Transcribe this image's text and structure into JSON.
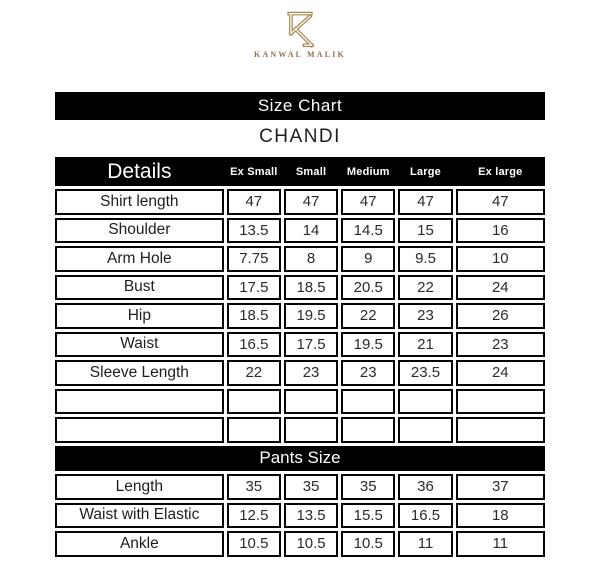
{
  "brand": {
    "name": "KANWAL MALIK",
    "monogram": "K-monogram"
  },
  "colors": {
    "brand_gold": "#a8874f",
    "banner_bg": "#000000",
    "banner_text": "#ffffff",
    "table_border": "#050505"
  },
  "banner": {
    "title": "Size Chart"
  },
  "product": {
    "name": "CHANDI"
  },
  "table": {
    "details_label": "Details",
    "columns": [
      "Ex Small",
      "Small",
      "Medium",
      "Large",
      "Ex large"
    ],
    "rows": [
      {
        "label": "Shirt length",
        "values": [
          "47",
          "47",
          "47",
          "47",
          "47"
        ]
      },
      {
        "label": "Shoulder",
        "values": [
          "13.5",
          "14",
          "14.5",
          "15",
          "16"
        ]
      },
      {
        "label": "Arm Hole",
        "values": [
          "7.75",
          "8",
          "9",
          "9.5",
          "10"
        ]
      },
      {
        "label": "Bust",
        "values": [
          "17.5",
          "18.5",
          "20.5",
          "22",
          "24"
        ]
      },
      {
        "label": "Hip",
        "values": [
          "18.5",
          "19.5",
          "22",
          "23",
          "26"
        ]
      },
      {
        "label": "Waist",
        "values": [
          "16.5",
          "17.5",
          "19.5",
          "21",
          "23"
        ]
      },
      {
        "label": "Sleeve Length",
        "values": [
          "22",
          "23",
          "23",
          "23.5",
          "24"
        ]
      },
      {
        "label": "",
        "values": [
          "",
          "",
          "",
          "",
          ""
        ]
      },
      {
        "label": "",
        "values": [
          "",
          "",
          "",
          "",
          ""
        ]
      }
    ],
    "pants_title": "Pants Size",
    "pants_rows": [
      {
        "label": "Length",
        "values": [
          "35",
          "35",
          "35",
          "36",
          "37"
        ]
      },
      {
        "label": "Waist with Elastic",
        "values": [
          "12.5",
          "13.5",
          "15.5",
          "16.5",
          "18"
        ]
      },
      {
        "label": "Ankle",
        "values": [
          "10.5",
          "10.5",
          "10.5",
          "11",
          "11"
        ]
      }
    ]
  }
}
